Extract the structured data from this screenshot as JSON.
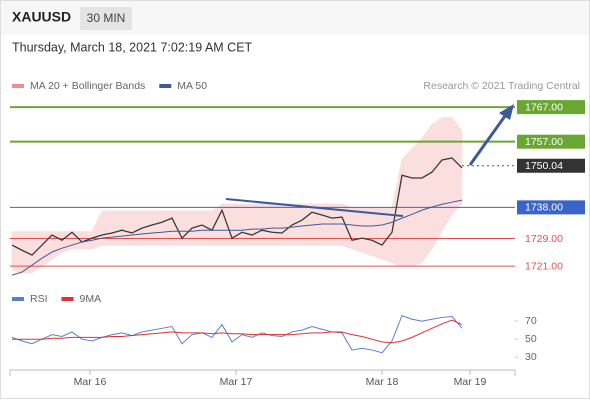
{
  "header": {
    "symbol": "XAUUSD",
    "interval": "30 MIN",
    "timestamp": "Thursday, March 18, 2021 7:02:19 AM CET",
    "credit": "Research © 2021 Trading Central"
  },
  "chart_data": [
    {
      "type": "line",
      "x": [
        0,
        1,
        2,
        3,
        4,
        5,
        6,
        7,
        8,
        9,
        10,
        11,
        12,
        13,
        14,
        15,
        16,
        17,
        18,
        19,
        20,
        21,
        22,
        23,
        24,
        25,
        26,
        27,
        28,
        29,
        30,
        31,
        32,
        33,
        34,
        35,
        36,
        37,
        38,
        39,
        40,
        41,
        42,
        43,
        44,
        45
      ],
      "xlim": [
        -0.2,
        50.3
      ],
      "xticks": [
        {
          "value": 7.8,
          "label": "Mar 16"
        },
        {
          "value": 22.4,
          "label": "Mar 17"
        },
        {
          "value": 37,
          "label": "Mar 18"
        },
        {
          "value": 45.8,
          "label": "Mar 19"
        }
      ],
      "ylim": [
        1717,
        1770.5
      ],
      "values": [
        1727.1,
        1725.6,
        1724.2,
        1727.1,
        1730.0,
        1728.5,
        1730.8,
        1728.0,
        1729.1,
        1730.0,
        1730.6,
        1731.4,
        1730.6,
        1732.0,
        1732.9,
        1733.7,
        1734.9,
        1729.1,
        1732.0,
        1732.9,
        1731.4,
        1737.2,
        1729.1,
        1730.8,
        1730.0,
        1731.4,
        1730.8,
        1730.6,
        1732.9,
        1734.3,
        1736.6,
        1735.8,
        1734.9,
        1735.2,
        1728.5,
        1729.1,
        1728.5,
        1727.1,
        1730.8,
        1747.3,
        1746.5,
        1746.5,
        1748.2,
        1751.7,
        1752.3,
        1749.4
      ],
      "color": "#3a3a3a",
      "bands": {
        "name": "MA 20 + Bollinger Bands",
        "color": "#f08c8c",
        "fill": "#fbdede",
        "upper": [
          1731,
          1731,
          1731,
          1731,
          1731,
          1731,
          1731,
          1731,
          1731,
          1737,
          1737,
          1737,
          1737,
          1737,
          1737,
          1737,
          1737,
          1737,
          1737,
          1737,
          1737,
          1739,
          1739,
          1739,
          1739,
          1739,
          1739,
          1739,
          1739,
          1739,
          1739,
          1739,
          1739,
          1739,
          1738,
          1738,
          1738,
          1738,
          1738,
          1752,
          1755,
          1758,
          1762,
          1764,
          1764,
          1760
        ],
        "lower": [
          1720,
          1719,
          1719,
          1721,
          1723,
          1725,
          1726,
          1726,
          1726,
          1727,
          1727,
          1727,
          1727,
          1727,
          1727,
          1727,
          1727,
          1727,
          1727,
          1727,
          1727,
          1727,
          1727,
          1727,
          1727,
          1727,
          1727,
          1727,
          1727,
          1727,
          1727,
          1727,
          1727,
          1727,
          1726,
          1725,
          1724,
          1723,
          1722,
          1721,
          1721,
          1722,
          1726,
          1731,
          1736,
          1739
        ]
      },
      "series": [
        {
          "name": "MA 50",
          "color": "#3d5a98",
          "values": [
            1718.4,
            1719.3,
            1721.3,
            1723.3,
            1725.1,
            1726.2,
            1727.1,
            1728.0,
            1728.5,
            1729.1,
            1729.4,
            1729.7,
            1730.0,
            1730.3,
            1730.6,
            1730.8,
            1731.1,
            1731.1,
            1731.1,
            1731.4,
            1731.4,
            1731.4,
            1731.4,
            1731.4,
            1731.7,
            1731.7,
            1732.0,
            1732.0,
            1732.3,
            1732.6,
            1732.9,
            1733.2,
            1733.2,
            1733.2,
            1732.9,
            1732.6,
            1732.6,
            1732.9,
            1733.7,
            1734.9,
            1736.0,
            1737.2,
            1738.1,
            1738.9,
            1739.5,
            1740.1
          ]
        }
      ],
      "levels": [
        {
          "value": 1767,
          "label": "1767.00",
          "color": "#6aa632",
          "boxed": true
        },
        {
          "value": 1757,
          "label": "1757.00",
          "color": "#6aa632",
          "boxed": true
        },
        {
          "value": 1750.04,
          "label": "1750.04",
          "color": "#333333",
          "boxed": true
        },
        {
          "value": 1738,
          "label": "1738.00",
          "color": "#3a64c8",
          "boxed": true
        },
        {
          "value": 1729,
          "label": "1729.00",
          "color": "#e05050",
          "boxed": false
        },
        {
          "value": 1721,
          "label": "1721.00",
          "color": "#e05050",
          "boxed": false
        }
      ]
    },
    {
      "type": "line",
      "ylim": [
        16,
        80
      ],
      "yticks": [
        30,
        50,
        70
      ],
      "series": [
        {
          "name": "RSI",
          "color": "#5a7fd0",
          "values": [
            52,
            48,
            45,
            50,
            55,
            53,
            58,
            50,
            48,
            52,
            55,
            57,
            54,
            58,
            60,
            62,
            64,
            45,
            55,
            57,
            52,
            66,
            47,
            55,
            52,
            57,
            54,
            53,
            58,
            60,
            64,
            61,
            58,
            57,
            38,
            40,
            38,
            35,
            48,
            76,
            72,
            70,
            72,
            74,
            75,
            62
          ]
        },
        {
          "name": "9MA",
          "color": "#e03030",
          "values": [
            50,
            50,
            50,
            50,
            51,
            51,
            52,
            52,
            52,
            52,
            53,
            53,
            54,
            55,
            56,
            57,
            58,
            57,
            57,
            57,
            56,
            57,
            56,
            56,
            55,
            55,
            55,
            55,
            55,
            56,
            57,
            57,
            58,
            58,
            55,
            53,
            50,
            47,
            46,
            48,
            52,
            57,
            62,
            67,
            71,
            66
          ]
        }
      ]
    }
  ]
}
